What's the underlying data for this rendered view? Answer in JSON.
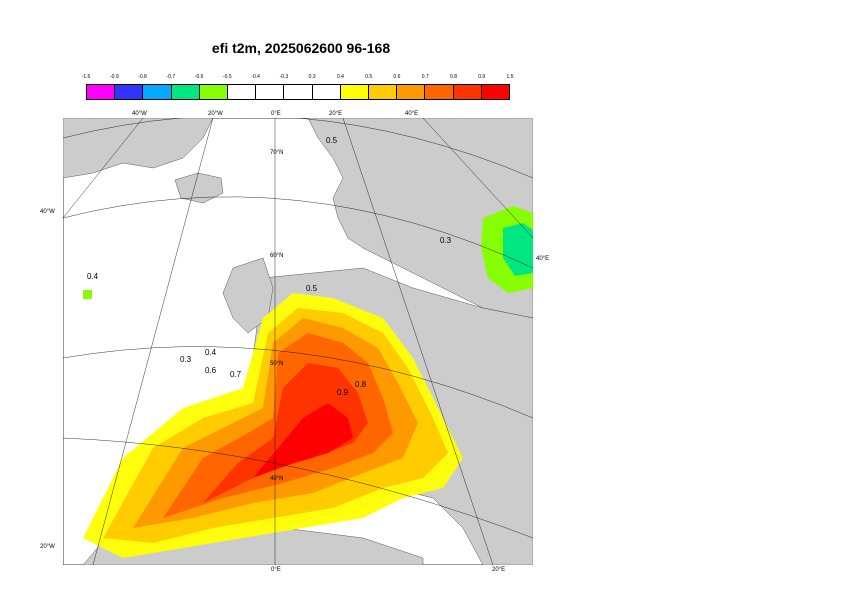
{
  "title": "efi t2m, 2025062600 96-168",
  "legend": {
    "ticks": [
      "-1.5",
      "-0.9",
      "-0.8",
      "-0.7",
      "-0.6",
      "-0.5",
      "-0.4",
      "-0.3",
      "0.3",
      "0.4",
      "0.5",
      "0.6",
      "0.7",
      "0.8",
      "0.9",
      "1.5"
    ],
    "colors": [
      "#ff00ff",
      "#3333ff",
      "#00aaff",
      "#00e680",
      "#88ff00",
      "#ffffff",
      "#ffffff",
      "#ffffff",
      "#ffffff",
      "#ffff00",
      "#ffcc00",
      "#ff9900",
      "#ff6600",
      "#ff3300",
      "#ff0000"
    ]
  },
  "map": {
    "land_color": "#cccccc",
    "sea_color": "#ffffff",
    "top_labels": [
      "40°W",
      "20°W",
      "0°E",
      "20°E",
      "40°E"
    ],
    "bottom_labels": [
      "0°E",
      "20°E"
    ],
    "left_labels": [
      "40°W",
      "20°W"
    ],
    "right_labels": [
      "40°E"
    ],
    "lat_labels": [
      "70°N",
      "60°N",
      "50°N",
      "40°N"
    ],
    "contour_labels": [
      "0.5",
      "0.4",
      "0.3",
      "0.6",
      "0.7",
      "0.8",
      "0.9",
      "0.3",
      "0.4",
      "0.5"
    ]
  }
}
